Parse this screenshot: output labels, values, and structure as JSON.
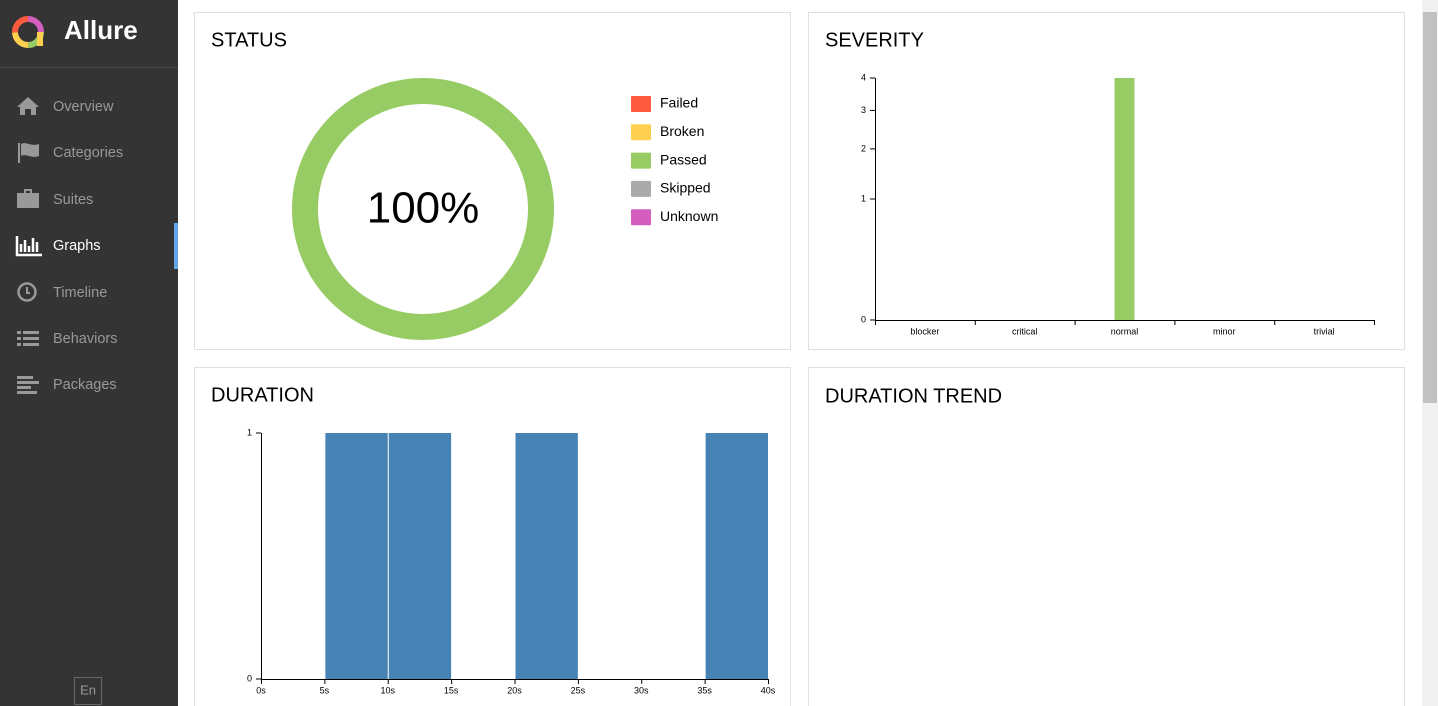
{
  "sidebar": {
    "brand": "Allure",
    "nav": [
      "Overview",
      "Categories",
      "Suites",
      "Graphs",
      "Timeline",
      "Behaviors",
      "Packages"
    ],
    "active_index": 3,
    "language": "En"
  },
  "chart_data": [
    {
      "type": "pie",
      "title": "STATUS",
      "donut": true,
      "categories": [
        "Failed",
        "Broken",
        "Passed",
        "Skipped",
        "Unknown"
      ],
      "values": [
        0,
        0,
        100,
        0,
        0
      ],
      "value_labels": [
        null,
        null,
        "100%",
        null,
        null
      ],
      "colors": [
        "#fd5a3e",
        "#ffd050",
        "#97cc64",
        "#aaaaaa",
        "#d35ebe"
      ]
    },
    {
      "type": "bar",
      "title": "SEVERITY",
      "categories": [
        "blocker",
        "critical",
        "normal",
        "minor",
        "trivial"
      ],
      "values": [
        0,
        0,
        4,
        0,
        0
      ],
      "color": "#97cc64",
      "ylim": [
        0,
        4
      ],
      "yticks": [
        0,
        1,
        2,
        3,
        4
      ],
      "yscale": "sqrt"
    },
    {
      "type": "histogram",
      "title": "DURATION",
      "bins": [
        0,
        5,
        10,
        15,
        20,
        25,
        30,
        35,
        40
      ],
      "values": [
        0,
        1,
        1,
        0,
        1,
        0,
        0,
        1
      ],
      "color": "#4682b4",
      "xlim": [
        0,
        40
      ],
      "xticks": [
        {
          "value": 0,
          "label": "0s"
        },
        {
          "value": 5,
          "label": "5s"
        },
        {
          "value": 10,
          "label": "10s"
        },
        {
          "value": 15,
          "label": "15s"
        },
        {
          "value": 20,
          "label": "20s"
        },
        {
          "value": 25,
          "label": "25s"
        },
        {
          "value": 30,
          "label": "30s"
        },
        {
          "value": 35,
          "label": "35s"
        },
        {
          "value": 40,
          "label": "40s"
        }
      ],
      "ylim": [
        0,
        1
      ],
      "yticks": [
        0,
        1
      ]
    }
  ],
  "duration_trend": {
    "title": "DURATION TREND"
  }
}
